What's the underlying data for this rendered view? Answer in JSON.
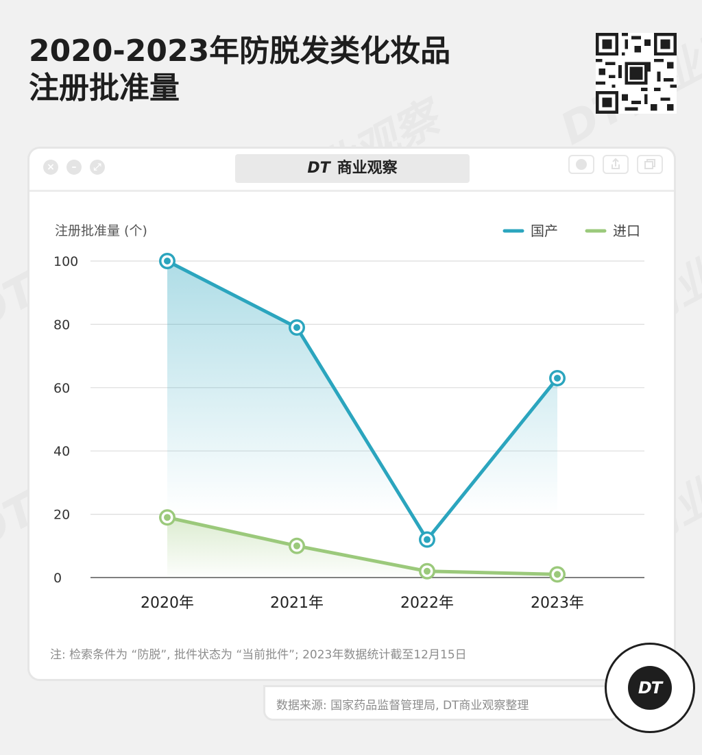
{
  "header": {
    "title_line1": "2020-2023年防脱发类化妆品",
    "title_line2": "注册批准量"
  },
  "window": {
    "brand_logo": "DT",
    "brand_name": "商业观察"
  },
  "chart_data": {
    "type": "line",
    "ylabel": "注册批准量 (个)",
    "categories": [
      "2020年",
      "2021年",
      "2022年",
      "2023年"
    ],
    "yticks": [
      0,
      20,
      40,
      60,
      80,
      100
    ],
    "ylim": [
      0,
      100
    ],
    "grid": true,
    "legend_position": "top-right",
    "series": [
      {
        "name": "国产",
        "values": [
          100,
          79,
          12,
          63
        ],
        "color": "#2ba5be"
      },
      {
        "name": "进口",
        "values": [
          19,
          10,
          2,
          1
        ],
        "color": "#9bc97b"
      }
    ]
  },
  "footnote": "注: 检索条件为 “防脱”, 批件状态为 “当前批件”; 2023年数据统计截至12月15日",
  "source": "数据来源: 国家药品监督管理局, DT商业观察整理",
  "badge": {
    "text": "DT"
  },
  "watermark": {
    "text": "DT商业观察"
  }
}
